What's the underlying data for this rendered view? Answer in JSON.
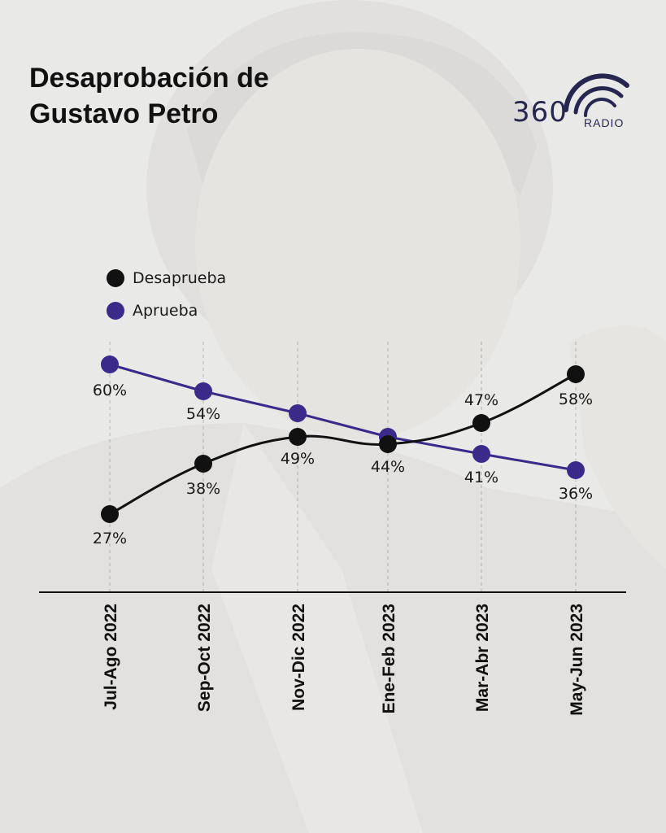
{
  "header": {
    "title_line1": "Desaprobación de",
    "title_line2": "Gustavo Petro"
  },
  "logo": {
    "number": "360",
    "word": "RADIO",
    "color": "#262650"
  },
  "colors": {
    "desaprueba": "#111111",
    "aprueba": "#3b2a8a"
  },
  "chart_data": {
    "type": "line",
    "categories": [
      "Jul-Ago 2022",
      "Sep-Oct 2022",
      "Nov-Dic 2022",
      "Ene-Feb 2023",
      "Mar-Abr 2023",
      "May-Jun 2023"
    ],
    "series": [
      {
        "name": "Desaprueba",
        "values": [
          27,
          38,
          49,
          44,
          47,
          58
        ],
        "labels": [
          "27%",
          "38%",
          "49%",
          "44%",
          "47%",
          "58%"
        ]
      },
      {
        "name": "Aprueba",
        "values": [
          60,
          54,
          49,
          44,
          41,
          36
        ],
        "labels": [
          "60%",
          "54%",
          "",
          "",
          "41%",
          "36%"
        ]
      }
    ],
    "legend_position": "top-left",
    "grid": false
  }
}
